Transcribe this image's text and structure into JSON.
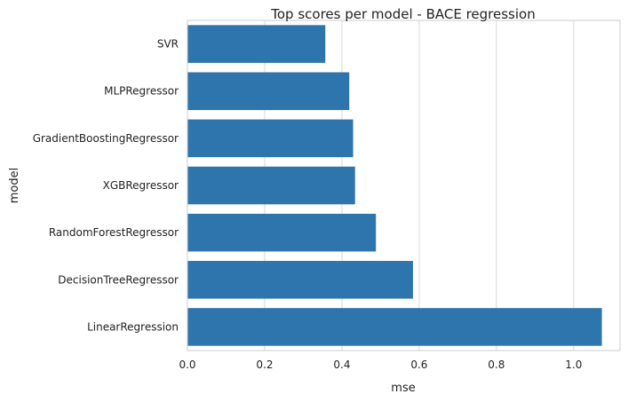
{
  "chart_data": {
    "type": "bar",
    "orientation": "horizontal",
    "title": "Top scores per model - BACE regression",
    "xlabel": "mse",
    "ylabel": "model",
    "categories": [
      "SVR",
      "MLPRegressor",
      "GradientBoostingRegressor",
      "XGBRegressor",
      "RandomForestRegressor",
      "DecisionTreeRegressor",
      "LinearRegression"
    ],
    "values": [
      0.357,
      0.419,
      0.429,
      0.434,
      0.488,
      0.584,
      1.073
    ],
    "xlim": [
      0,
      1.12
    ],
    "xticks": [
      0.0,
      0.2,
      0.4,
      0.6,
      0.8,
      1.0
    ],
    "xtick_labels": [
      "0.0",
      "0.2",
      "0.4",
      "0.6",
      "0.8",
      "1.0"
    ],
    "grid": "vertical",
    "bar_color": "#2e75ad",
    "grid_color": "#d8d8d8",
    "spine_color": "#cccccc"
  }
}
